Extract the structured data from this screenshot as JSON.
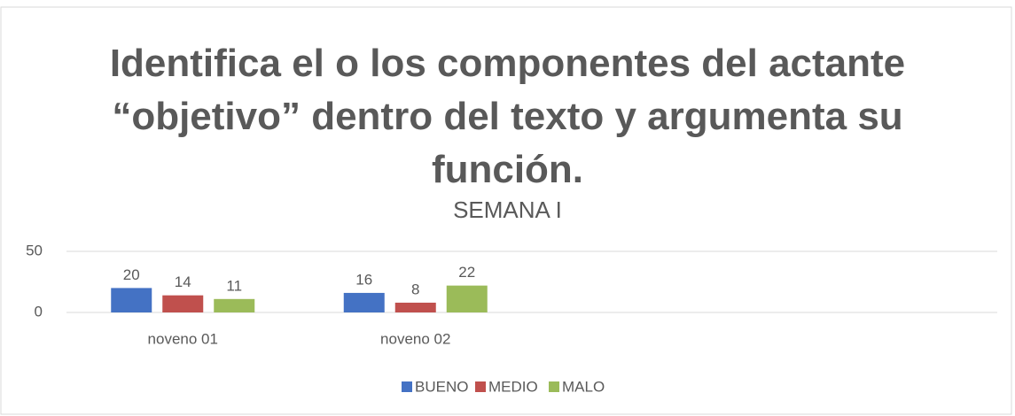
{
  "chart_data": {
    "type": "bar",
    "title": "Identifica el o los componentes del actante “objetivo” dentro del texto y argumenta su función.",
    "subtitle": "SEMANA I",
    "categories": [
      "noveno 01",
      "noveno 02",
      null,
      null
    ],
    "series": [
      {
        "name": "BUENO",
        "color": "#4472c4",
        "values": [
          20,
          16,
          null,
          null
        ]
      },
      {
        "name": "MEDIO",
        "color": "#c0504d",
        "values": [
          14,
          8,
          null,
          null
        ]
      },
      {
        "name": "MALO",
        "color": "#9bbb59",
        "values": [
          11,
          22,
          null,
          null
        ]
      }
    ],
    "ylim": [
      0,
      50
    ],
    "yticks": [
      0,
      50
    ],
    "grid": true,
    "legend": "bottom"
  }
}
